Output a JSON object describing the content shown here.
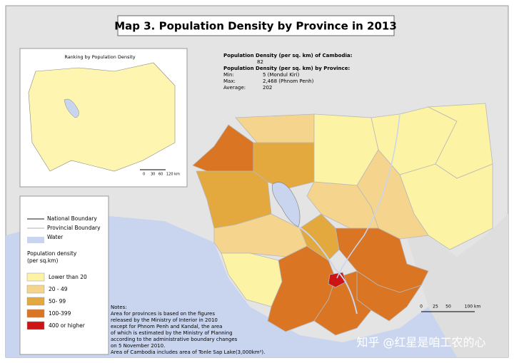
{
  "title": "Map 3. Population Density by Province in 2013",
  "summary": {
    "national_label": "Population Density (per sq. km) of Cambodia:",
    "national_value": "82",
    "province_label": "Population Density (per sq. km) by Province:",
    "rows": [
      [
        "Min:",
        "5 (Mondul Kiri)"
      ],
      [
        "Max:",
        "2,468 (Phnom Penh)"
      ],
      [
        "Average:",
        "202"
      ]
    ]
  },
  "inset": {
    "title": "Ranking by Population Density",
    "scale": [
      "0",
      "30",
      "60",
      "120 km"
    ]
  },
  "legend": {
    "boundaries": [
      "National Boundary",
      "Provincial Boundary",
      "Water"
    ],
    "title": [
      "Population density",
      "(per sq.km)"
    ],
    "classes": [
      {
        "label": "Lower than 20",
        "color": "#fdf3a4"
      },
      {
        "label": "20 - 49",
        "color": "#f5d48e"
      },
      {
        "label": "50- 99",
        "color": "#e3a83e"
      },
      {
        "label": "100-399",
        "color": "#da7524"
      },
      {
        "label": "400 or higher",
        "color": "#cc1414"
      }
    ]
  },
  "notes": [
    "Notes:",
    "Area for provinces is based on the figures",
    "released by the Ministry of Interior in 2010",
    "except for Phnom Penh and Kandal, the area",
    "of which is estimated by the Ministry of Planning",
    "according to the administrative boundary changes",
    "on 5 November 2010.",
    "Area of Cambodia includes area of Tonle Sap Lake(3,000km²)."
  ],
  "scale": [
    "0",
    "25",
    "50",
    "100 km"
  ],
  "watermark": "知乎 @红星是咱工农的心"
}
